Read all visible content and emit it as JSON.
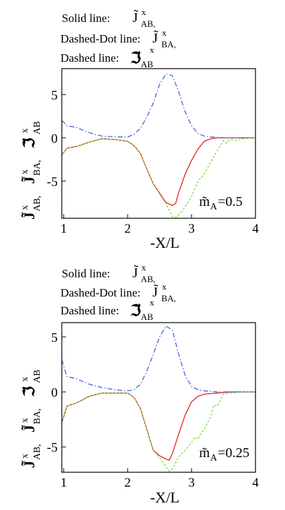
{
  "chart_data": [
    {
      "type": "line",
      "legend": {
        "placement": "top-left",
        "entries": [
          "Solid line:",
          "Dashed-Dot line:",
          "Dashed line:"
        ],
        "symbols": [
          "J̃",
          "J̃",
          "ℑ̃"
        ],
        "superscripts": [
          "x",
          "x",
          "x"
        ],
        "subscripts": [
          "AB,",
          "BA,",
          "AB"
        ]
      },
      "xlabel": "-X/L",
      "ylabel": {
        "t1": "J̃",
        "s1": "x",
        "b1": "AB,",
        "t2": "J̃",
        "s2": "x",
        "b2": "BA,",
        "t3": "ℑ̃",
        "s3": "x",
        "b3": "AB"
      },
      "annotation": {
        "base": "m̃",
        "sub": "A",
        "rest": "=0.5"
      },
      "xlim": [
        0.97,
        4.0
      ],
      "ylim": [
        -9.3,
        8.0
      ],
      "xticks": [
        1,
        2,
        3,
        4
      ],
      "yticks": [
        -5,
        0,
        5
      ],
      "grid": false,
      "series": [
        {
          "style": "solid",
          "color": "#dd1111",
          "x": [
            0.97,
            1.05,
            1.2,
            1.4,
            1.6,
            1.8,
            2.0,
            2.1,
            2.2,
            2.3,
            2.4,
            2.5,
            2.6,
            2.7,
            2.75,
            2.8,
            2.9,
            3.0,
            3.1,
            3.2,
            3.3,
            3.4,
            3.6,
            3.8,
            4.0
          ],
          "y": [
            -2.0,
            -1.2,
            -1.0,
            -0.5,
            -0.1,
            -0.2,
            -0.4,
            -0.9,
            -1.8,
            -3.6,
            -5.3,
            -6.4,
            -7.5,
            -7.8,
            -7.6,
            -6.3,
            -4.2,
            -2.6,
            -1.3,
            -0.4,
            -0.1,
            0.0,
            0.0,
            0.0,
            0.0
          ]
        },
        {
          "style": "dashdot",
          "color": "#3355dd",
          "x": [
            0.97,
            1.05,
            1.2,
            1.4,
            1.6,
            1.8,
            2.0,
            2.1,
            2.2,
            2.3,
            2.4,
            2.5,
            2.6,
            2.7,
            2.8,
            2.9,
            3.0,
            3.1,
            3.2,
            3.3,
            3.5,
            4.0
          ],
          "y": [
            2.0,
            1.4,
            1.2,
            0.6,
            0.2,
            0.1,
            0.1,
            0.4,
            1.1,
            2.4,
            4.0,
            6.2,
            7.4,
            7.2,
            5.3,
            3.0,
            1.4,
            0.5,
            0.2,
            0.1,
            0.0,
            0.0
          ]
        },
        {
          "style": "dashed",
          "color": "#66dd22",
          "x": [
            0.97,
            1.05,
            1.2,
            1.4,
            1.6,
            1.8,
            2.0,
            2.1,
            2.2,
            2.3,
            2.4,
            2.5,
            2.6,
            2.7,
            2.75,
            2.8,
            2.9,
            3.0,
            3.1,
            3.2,
            3.3,
            3.4,
            3.45,
            3.5,
            3.55,
            3.6,
            3.7,
            3.8,
            4.0
          ],
          "y": [
            -2.0,
            -1.2,
            -1.0,
            -0.5,
            -0.1,
            -0.2,
            -0.4,
            -0.9,
            -1.8,
            -3.6,
            -5.3,
            -6.5,
            -7.6,
            -9.1,
            -9.2,
            -8.9,
            -8.0,
            -6.8,
            -5.0,
            -4.2,
            -2.8,
            -1.5,
            -0.9,
            -0.3,
            -0.6,
            -0.2,
            -0.3,
            -0.1,
            0.0
          ]
        }
      ]
    },
    {
      "type": "line",
      "legend": {
        "placement": "top-left",
        "entries": [
          "Solid line:",
          "Dashed-Dot line:",
          "Dashed line:"
        ],
        "symbols": [
          "J̃",
          "J̃",
          "ℑ̃"
        ],
        "superscripts": [
          "x",
          "x",
          "x"
        ],
        "subscripts": [
          "AB,",
          "BA,",
          "AB"
        ]
      },
      "xlabel": "-X/L",
      "ylabel": {
        "t1": "J̃",
        "s1": "x",
        "b1": "AB,",
        "t2": "J̃",
        "s2": "x",
        "b2": "BA,",
        "t3": "ℑ̃",
        "s3": "x",
        "b3": "AB"
      },
      "annotation": {
        "base": "m̃",
        "sub": "A",
        "rest": "=0.25"
      },
      "xlim": [
        0.97,
        4.0
      ],
      "ylim": [
        -7.3,
        6.3
      ],
      "xticks": [
        1,
        2,
        3,
        4
      ],
      "yticks": [
        -5,
        0,
        5
      ],
      "grid": false,
      "series": [
        {
          "style": "solid",
          "color": "#dd1111",
          "x": [
            0.97,
            1.05,
            1.2,
            1.4,
            1.6,
            1.8,
            2.0,
            2.1,
            2.2,
            2.3,
            2.4,
            2.5,
            2.6,
            2.65,
            2.7,
            2.8,
            2.9,
            3.0,
            3.1,
            3.2,
            3.4,
            3.6,
            4.0
          ],
          "y": [
            -2.8,
            -1.3,
            -1.0,
            -0.4,
            -0.1,
            -0.1,
            -0.1,
            -0.5,
            -1.5,
            -3.4,
            -5.3,
            -5.8,
            -6.1,
            -6.2,
            -5.6,
            -3.8,
            -2.1,
            -0.9,
            -0.4,
            -0.2,
            -0.1,
            0.0,
            0.0
          ]
        },
        {
          "style": "dashdot",
          "color": "#3355dd",
          "x": [
            0.97,
            1.05,
            1.2,
            1.4,
            1.6,
            1.8,
            2.0,
            2.1,
            2.2,
            2.3,
            2.4,
            2.5,
            2.6,
            2.7,
            2.8,
            2.9,
            3.0,
            3.1,
            3.2,
            3.4,
            4.0
          ],
          "y": [
            2.9,
            1.4,
            1.2,
            0.7,
            0.4,
            0.2,
            0.1,
            0.2,
            0.7,
            1.9,
            3.4,
            5.0,
            6.0,
            5.6,
            3.4,
            1.5,
            0.5,
            0.2,
            0.1,
            0.0,
            0.0
          ]
        },
        {
          "style": "dashed",
          "color": "#66dd22",
          "x": [
            0.97,
            1.05,
            1.2,
            1.4,
            1.6,
            1.8,
            2.0,
            2.1,
            2.2,
            2.3,
            2.4,
            2.5,
            2.6,
            2.65,
            2.7,
            2.8,
            2.9,
            3.0,
            3.05,
            3.1,
            3.15,
            3.2,
            3.3,
            3.35,
            3.4,
            3.5,
            3.6,
            3.8,
            4.0
          ],
          "y": [
            -2.8,
            -1.3,
            -1.0,
            -0.4,
            -0.1,
            -0.1,
            -0.1,
            -0.5,
            -1.5,
            -3.4,
            -5.3,
            -6.0,
            -6.8,
            -7.2,
            -7.0,
            -5.9,
            -5.3,
            -4.6,
            -4.1,
            -4.3,
            -3.7,
            -3.4,
            -2.2,
            -1.2,
            -1.3,
            -0.2,
            -0.1,
            0.0,
            0.0
          ]
        }
      ]
    }
  ]
}
